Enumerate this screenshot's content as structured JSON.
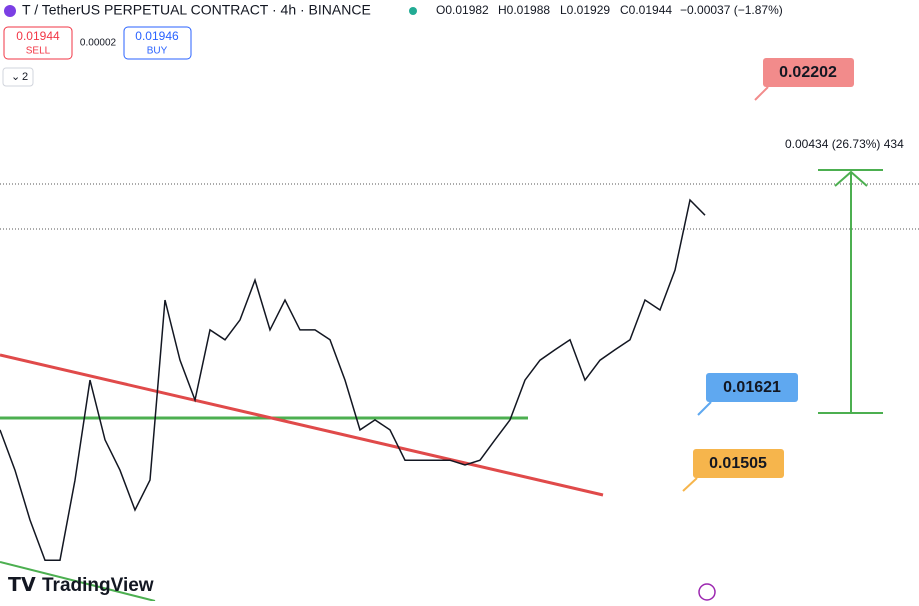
{
  "header": {
    "symbol": "T / TetherUS PERPETUAL CONTRACT · 4h · BINANCE",
    "open": "O0.01982",
    "high": "H0.01988",
    "low": "L0.01929",
    "close": "C0.01944",
    "change": "−0.00037 (−1.87%)"
  },
  "trade": {
    "sell_price": "0.01944",
    "sell_label": "SELL",
    "spread": "0.00002",
    "buy_price": "0.01946",
    "buy_label": "BUY"
  },
  "indicators_toggle": "2",
  "measure_label": "0.00434 (26.73%) 434",
  "targets": [
    "0.02202",
    "0.01621",
    "0.01505"
  ],
  "brand": "TradingView",
  "chart": {
    "type": "line",
    "color": "#131722",
    "ylim": [
      0.01119,
      0.02387
    ],
    "values": [
      0.0148,
      0.01395,
      0.0129,
      0.01205,
      0.01205,
      0.01374,
      0.01585,
      0.01459,
      0.01395,
      0.01311,
      0.01374,
      0.01754,
      0.01627,
      0.01543,
      0.01691,
      0.0167,
      0.01712,
      0.01796,
      0.01691,
      0.01754,
      0.01691,
      0.01691,
      0.0167,
      0.01585,
      0.0148,
      0.01501,
      0.0148,
      0.01416,
      0.01416,
      0.01416,
      0.01416,
      0.01406,
      0.01416,
      0.01459,
      0.01501,
      0.01585,
      0.01627,
      0.01649,
      0.0167,
      0.01585,
      0.01627,
      0.01649,
      0.0167,
      0.01754,
      0.01733,
      0.01817,
      0.01965,
      0.01933
    ]
  }
}
